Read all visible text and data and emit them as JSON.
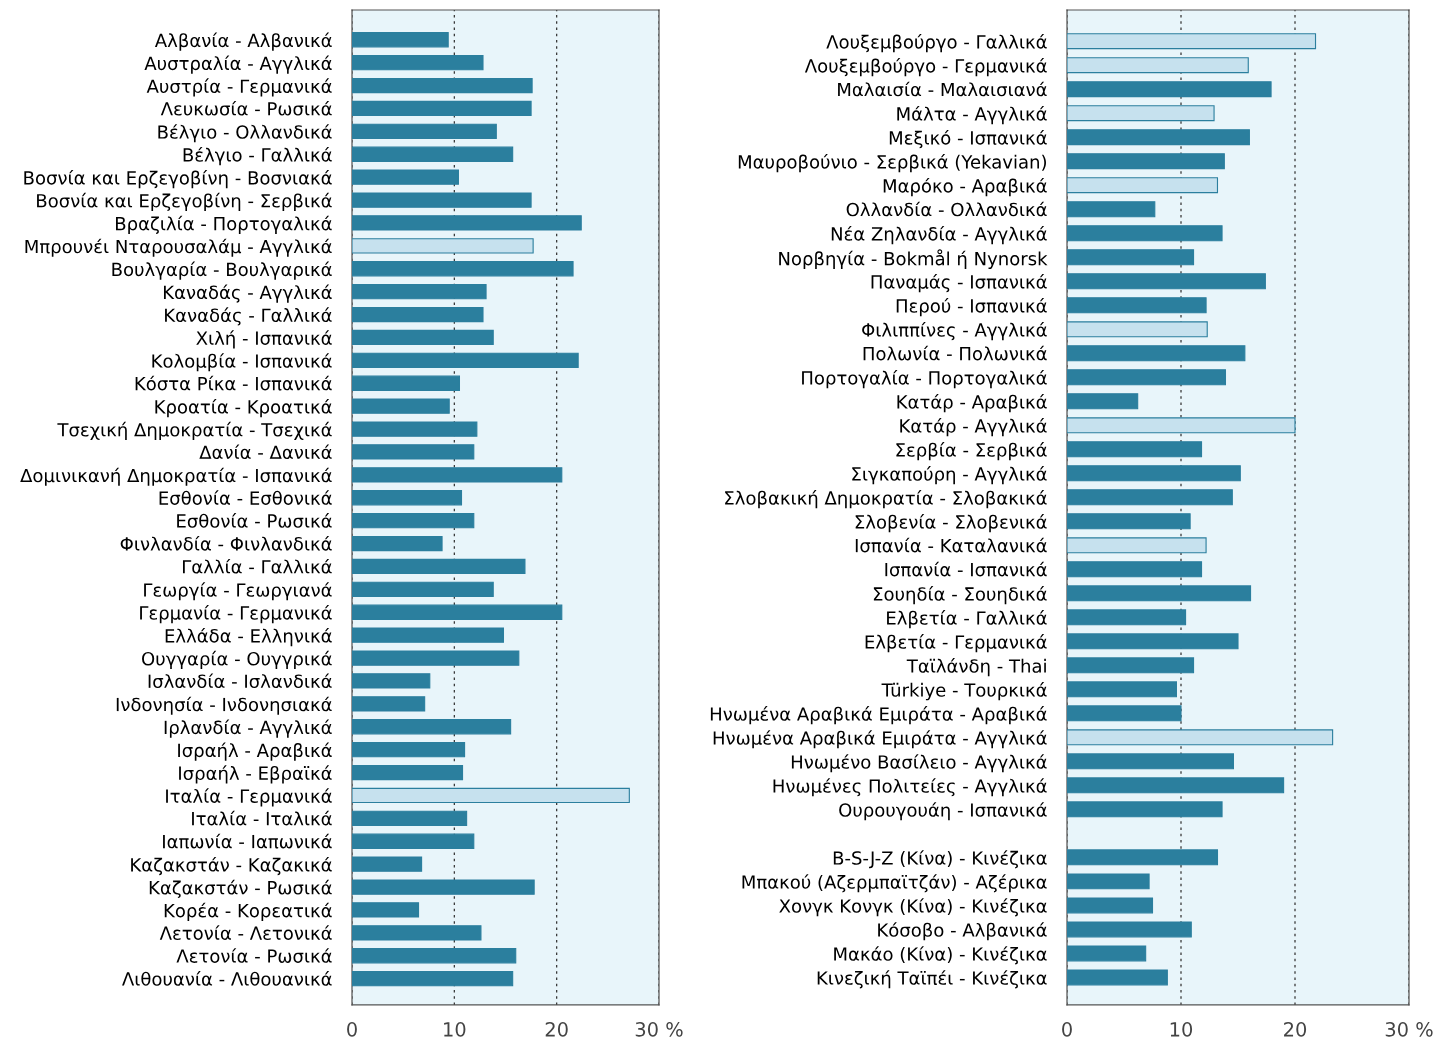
{
  "chart_data": [
    {
      "type": "bar",
      "orientation": "horizontal",
      "grid": "x",
      "xlim": [
        0,
        30
      ],
      "xticks": [
        0,
        10,
        20,
        {
          "value": 30,
          "label": "30 %"
        }
      ],
      "categories": [
        "Αλβανία - Αλβανικά",
        "Αυστραλία - Αγγλικά",
        "Αυστρία - Γερμανικά",
        "Λευκωσία - Ρωσικά",
        "Βέλγιο - Ολλανδικά",
        "Βέλγιο - Γαλλικά",
        "Βοσνία και Ερζεγοβίνη - Βοσνιακά",
        "Βοσνία και Ερζεγοβίνη - Σερβικά",
        "Βραζιλία - Πορτογαλικά",
        "Μπρουνέι Νταρουσαλάμ - Αγγλικά",
        "Βουλγαρία - Βουλγαρικά",
        "Καναδάς - Αγγλικά",
        "Καναδάς - Γαλλικά",
        "Χιλή - Ισπανικά",
        "Κολομβία - Ισπανικά",
        "Κόστα Ρίκα - Ισπανικά",
        "Κροατία - Κροατικά",
        "Τσεχική Δημοκρατία - Τσεχικά",
        "Δανία - Δανικά",
        "Δομινικανή Δημοκρατία - Ισπανικά",
        "Εσθονία - Εσθονικά",
        "Εσθονία - Ρωσικά",
        "Φινλανδία - Φινλανδικά",
        "Γαλλία - Γαλλικά",
        "Γεωργία - Γεωργιανά",
        "Γερμανία - Γερμανικά",
        "Ελλάδα - Ελληνικά",
        "Ουγγαρία - Ουγγρικά",
        "Ισλανδία - Ισλανδικά",
        "Ινδονησία - Ινδονησιακά",
        "Ιρλανδία - Αγγλικά",
        "Ισραήλ - Αραβικά",
        "Ισραήλ - Εβραϊκά",
        "Ιταλία - Γερμανικά",
        "Ιταλία - Ιταλικά",
        "Ιαπωνία - Ιαπωνικά",
        "Καζακστάν - Καζακικά",
        "Καζακστάν - Ρωσικά",
        "Κορέα - Κορεατικά",
        "Λετονία - Λετονικά",
        "Λετονία - Ρωσικά",
        "Λιθουανία - Λιθουανικά"
      ],
      "values": [
        9.4,
        12.8,
        17.6,
        17.5,
        14.1,
        15.7,
        10.4,
        17.5,
        22.4,
        17.7,
        21.6,
        13.1,
        12.8,
        13.8,
        22.1,
        10.5,
        9.5,
        12.2,
        11.9,
        20.5,
        10.7,
        11.9,
        8.8,
        16.9,
        13.8,
        20.5,
        14.8,
        16.3,
        7.6,
        7.1,
        15.5,
        11.0,
        10.8,
        27.1,
        11.2,
        11.9,
        6.8,
        17.8,
        6.5,
        12.6,
        16.0,
        15.7
      ],
      "colors": [
        "#2b7f9e",
        "#2b7f9e",
        "#2b7f9e",
        "#2b7f9e",
        "#2b7f9e",
        "#2b7f9e",
        "#2b7f9e",
        "#2b7f9e",
        "#2b7f9e",
        "#c6e1ee",
        "#2b7f9e",
        "#2b7f9e",
        "#2b7f9e",
        "#2b7f9e",
        "#2b7f9e",
        "#2b7f9e",
        "#2b7f9e",
        "#2b7f9e",
        "#2b7f9e",
        "#2b7f9e",
        "#2b7f9e",
        "#2b7f9e",
        "#2b7f9e",
        "#2b7f9e",
        "#2b7f9e",
        "#2b7f9e",
        "#2b7f9e",
        "#2b7f9e",
        "#2b7f9e",
        "#2b7f9e",
        "#2b7f9e",
        "#2b7f9e",
        "#2b7f9e",
        "#c6e1ee",
        "#2b7f9e",
        "#2b7f9e",
        "#2b7f9e",
        "#2b7f9e",
        "#2b7f9e",
        "#2b7f9e",
        "#2b7f9e",
        "#2b7f9e"
      ]
    },
    {
      "type": "bar",
      "orientation": "horizontal",
      "grid": "x",
      "xlim": [
        0,
        30
      ],
      "xticks": [
        0,
        10,
        20,
        {
          "value": 30,
          "label": "30 %"
        }
      ],
      "categories": [
        "Λουξεμβούργο - Γαλλικά",
        "Λουξεμβούργο - Γερμανικά",
        "Μαλαισία - Μαλαισιανά",
        "Μάλτα - Αγγλικά",
        "Μεξικό - Ισπανικά",
        "Μαυροβούνιο - Σερβικά (Yekavian)",
        "Μαρόκο - Αραβικά",
        "Ολλανδία - Ολλανδικά",
        "Νέα Ζηλανδία - Αγγλικά",
        "Νορβηγία - Bokmål ή Nynorsk",
        "Παναμάς - Ισπανικά",
        "Περού - Ισπανικά",
        "Φιλιππίνες - Αγγλικά",
        "Πολωνία - Πολωνικά",
        "Πορτογαλία - Πορτογαλικά",
        "Κατάρ - Αραβικά",
        "Κατάρ - Αγγλικά",
        "Σερβία - Σερβικά",
        "Σιγκαπούρη - Αγγλικά",
        "Σλοβακική Δημοκρατία - Σλοβακικά",
        "Σλοβενία - Σλοβενικά",
        "Ισπανία - Καταλανικά",
        "Ισπανία - Ισπανικά",
        "Σουηδία - Σουηδικά",
        "Ελβετία - Γαλλικά",
        "Ελβετία - Γερμανικά",
        "Ταϊλάνδη - Thai",
        "Türkiye - Τουρκικά",
        "Ηνωμένα Αραβικά Εμιράτα - Αραβικά",
        "Ηνωμένα Αραβικά Εμιράτα - Αγγλικά",
        "Ηνωμένο Βασίλειο - Αγγλικά",
        "Ηνωμένες Πολιτείες - Αγγλικά",
        "Ουρουγουάη - Ισπανικά",
        null,
        "B-S-J-Z (Κίνα) - Κινέζικα",
        "Μπακού (Αζερμπαϊτζάν) - Αζέρικα",
        "Χονγκ Κονγκ (Κίνα) - Κινέζικα",
        "Κόσοβο - Αλβανικά",
        "Μακάο (Κίνα) - Κινέζικα",
        "Κινεζική Ταϊπέι - Κινέζικα"
      ],
      "values": [
        21.8,
        15.9,
        17.9,
        12.9,
        16.0,
        13.8,
        13.2,
        7.7,
        13.6,
        11.1,
        17.4,
        12.2,
        12.3,
        15.6,
        13.9,
        6.2,
        20.0,
        11.8,
        15.2,
        14.5,
        10.8,
        12.2,
        11.8,
        16.1,
        10.4,
        15.0,
        11.1,
        9.6,
        10.0,
        23.3,
        14.6,
        19.0,
        13.6,
        null,
        13.2,
        7.2,
        7.5,
        10.9,
        6.9,
        8.8
      ],
      "colors": [
        "#c6e1ee",
        "#c6e1ee",
        "#2b7f9e",
        "#c6e1ee",
        "#2b7f9e",
        "#2b7f9e",
        "#c6e1ee",
        "#2b7f9e",
        "#2b7f9e",
        "#2b7f9e",
        "#2b7f9e",
        "#2b7f9e",
        "#c6e1ee",
        "#2b7f9e",
        "#2b7f9e",
        "#2b7f9e",
        "#c6e1ee",
        "#2b7f9e",
        "#2b7f9e",
        "#2b7f9e",
        "#2b7f9e",
        "#c6e1ee",
        "#2b7f9e",
        "#2b7f9e",
        "#2b7f9e",
        "#2b7f9e",
        "#2b7f9e",
        "#2b7f9e",
        "#2b7f9e",
        "#c6e1ee",
        "#2b7f9e",
        "#2b7f9e",
        "#2b7f9e",
        "#2b7f9e",
        "#2b7f9e",
        "#2b7f9e",
        "#2b7f9e",
        "#2b7f9e",
        "#2b7f9e",
        "#2b7f9e"
      ]
    }
  ]
}
